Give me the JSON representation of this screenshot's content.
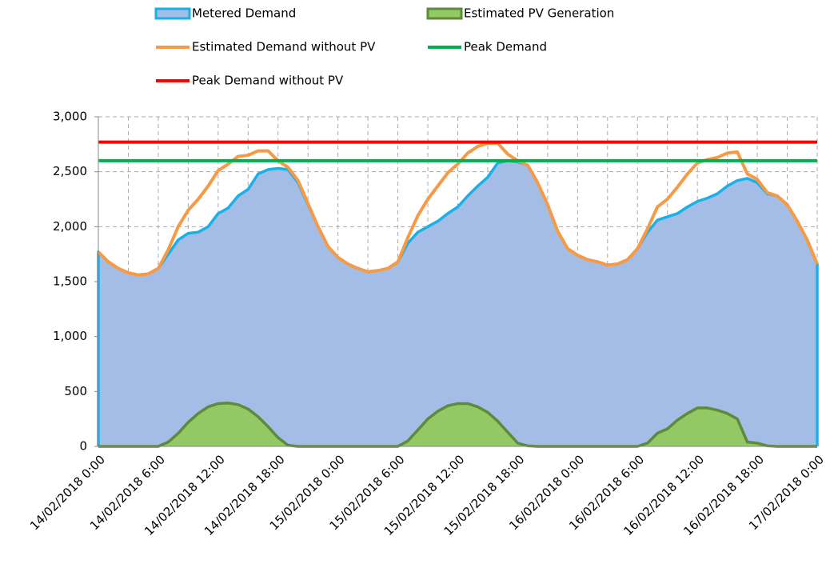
{
  "chart_data": {
    "type": "area-line",
    "categories": [
      "14/02/2018 0:00",
      null,
      null,
      null,
      null,
      null,
      "14/02/2018 6:00",
      null,
      null,
      null,
      null,
      null,
      "14/02/2018 12:00",
      null,
      null,
      null,
      null,
      null,
      "14/02/2018 18:00",
      null,
      null,
      null,
      null,
      null,
      "15/02/2018 0:00",
      null,
      null,
      null,
      null,
      null,
      "15/02/2018 6:00",
      null,
      null,
      null,
      null,
      null,
      "15/02/2018 12:00",
      null,
      null,
      null,
      null,
      null,
      "15/02/2018 18:00",
      null,
      null,
      null,
      null,
      null,
      "16/02/2018 0:00",
      null,
      null,
      null,
      null,
      null,
      "16/02/2018 6:00",
      null,
      null,
      null,
      null,
      null,
      "16/02/2018 12:00",
      null,
      null,
      null,
      null,
      null,
      "16/02/2018 18:00",
      null,
      null,
      null,
      null,
      null,
      "17/02/2018 0:00"
    ],
    "series": [
      {
        "name": "Metered Demand",
        "kind": "area",
        "color": "#1ab0e8",
        "fill": "#a3bde6",
        "values": [
          1770,
          1680,
          1620,
          1580,
          1560,
          1570,
          1620,
          1750,
          1880,
          1940,
          1950,
          2000,
          2120,
          2170,
          2280,
          2340,
          2480,
          2520,
          2530,
          2520,
          2400,
          2200,
          2000,
          1820,
          1720,
          1660,
          1620,
          1590,
          1600,
          1620,
          1680,
          1850,
          1950,
          2000,
          2050,
          2120,
          2180,
          2280,
          2370,
          2450,
          2580,
          2600,
          2590,
          2560,
          2400,
          2200,
          1960,
          1800,
          1740,
          1700,
          1680,
          1650,
          1660,
          1700,
          1800,
          1950,
          2060,
          2090,
          2120,
          2180,
          2230,
          2260,
          2300,
          2370,
          2420,
          2440,
          2400,
          2300,
          2280,
          2200,
          2050,
          1880,
          1660
        ]
      },
      {
        "name": "Estimated PV Generation",
        "kind": "area",
        "color": "#5e8a3a",
        "fill": "#92c964",
        "values": [
          0,
          0,
          0,
          0,
          0,
          0,
          0,
          40,
          120,
          220,
          300,
          360,
          390,
          395,
          380,
          340,
          270,
          180,
          80,
          10,
          0,
          0,
          0,
          0,
          0,
          0,
          0,
          0,
          0,
          0,
          0,
          50,
          150,
          250,
          320,
          370,
          390,
          390,
          360,
          310,
          230,
          130,
          30,
          5,
          0,
          0,
          0,
          0,
          0,
          0,
          0,
          0,
          0,
          0,
          0,
          30,
          120,
          160,
          240,
          300,
          350,
          350,
          330,
          300,
          250,
          40,
          30,
          5,
          0,
          0,
          0,
          0,
          0
        ]
      },
      {
        "name": "Estimated Demand without PV",
        "kind": "line",
        "color": "#f79a45",
        "values": [
          1770,
          1680,
          1620,
          1580,
          1560,
          1570,
          1620,
          1790,
          2000,
          2150,
          2250,
          2370,
          2510,
          2570,
          2640,
          2650,
          2690,
          2690,
          2600,
          2540,
          2420,
          2210,
          2000,
          1820,
          1720,
          1660,
          1620,
          1590,
          1600,
          1620,
          1680,
          1900,
          2100,
          2250,
          2370,
          2490,
          2570,
          2670,
          2730,
          2760,
          2760,
          2660,
          2600,
          2560,
          2400,
          2200,
          1960,
          1800,
          1740,
          1700,
          1680,
          1650,
          1660,
          1700,
          1800,
          1980,
          2180,
          2250,
          2360,
          2480,
          2580,
          2610,
          2630,
          2670,
          2680,
          2480,
          2430,
          2310,
          2280,
          2200,
          2050,
          1880,
          1660
        ]
      },
      {
        "name": "Peak Demand",
        "kind": "hline",
        "color": "#00b050",
        "value": 2600
      },
      {
        "name": "Peak Demand without PV",
        "kind": "hline",
        "color": "#ff0000",
        "value": 2770
      }
    ],
    "ylim": [
      0,
      3000
    ],
    "yticks": [
      0,
      500,
      {
        "value": 1000,
        "label": "1,000"
      },
      {
        "value": 1500,
        "label": "1,500"
      },
      {
        "value": 2000,
        "label": "2,000"
      },
      {
        "value": 2500,
        "label": "2,500"
      },
      {
        "value": 3000,
        "label": "3,000"
      }
    ],
    "grid": true
  }
}
